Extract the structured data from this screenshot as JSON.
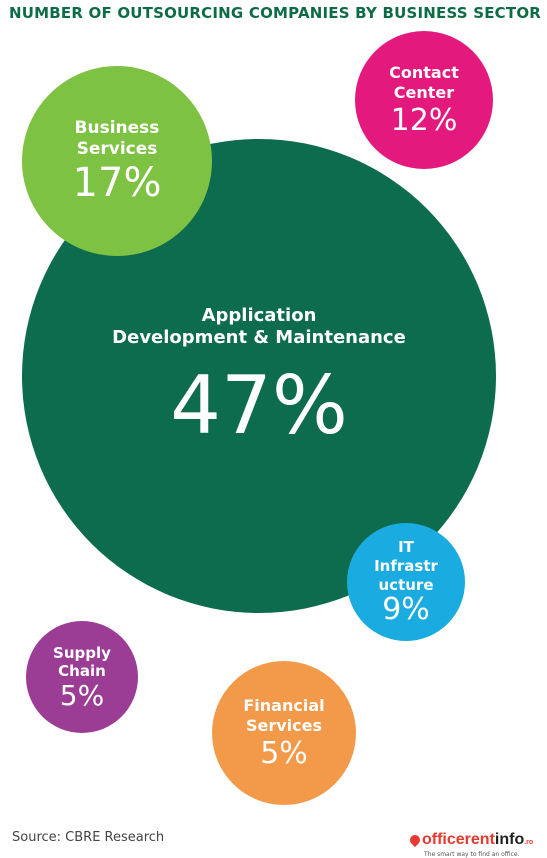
{
  "title": "NUMBER OF OUTSOURCING COMPANIES BY BUSINESS SECTOR",
  "source": "Source: CBRE Research",
  "logo": {
    "brand_red": "officerent",
    "brand_dark": "info",
    "brand_suffix": ".ro",
    "tagline": "The smart way to find an office."
  },
  "chart_data": {
    "type": "bubble",
    "title": "NUMBER OF OUTSOURCING COMPANIES BY BUSINESS SECTOR",
    "unit": "%",
    "bubbles": [
      {
        "label_lines": [
          "Application",
          "Development & Maintenance"
        ],
        "value": 47,
        "display": "47%",
        "color": "#0d6b4e"
      },
      {
        "label_lines": [
          "Business",
          "Services"
        ],
        "value": 17,
        "display": "17%",
        "color": "#7dc242"
      },
      {
        "label_lines": [
          "Contact",
          "Center"
        ],
        "value": 12,
        "display": "12%",
        "color": "#e4197d"
      },
      {
        "label_lines": [
          "IT",
          "Infrastr",
          "ucture"
        ],
        "value": 9,
        "display": "9%",
        "color": "#1aace0"
      },
      {
        "label_lines": [
          "Supply",
          "Chain"
        ],
        "value": 5,
        "display": "5%",
        "color": "#9b3c95"
      },
      {
        "label_lines": [
          "Financial",
          "Services"
        ],
        "value": 5,
        "display": "5%",
        "color": "#f2994a"
      }
    ]
  }
}
